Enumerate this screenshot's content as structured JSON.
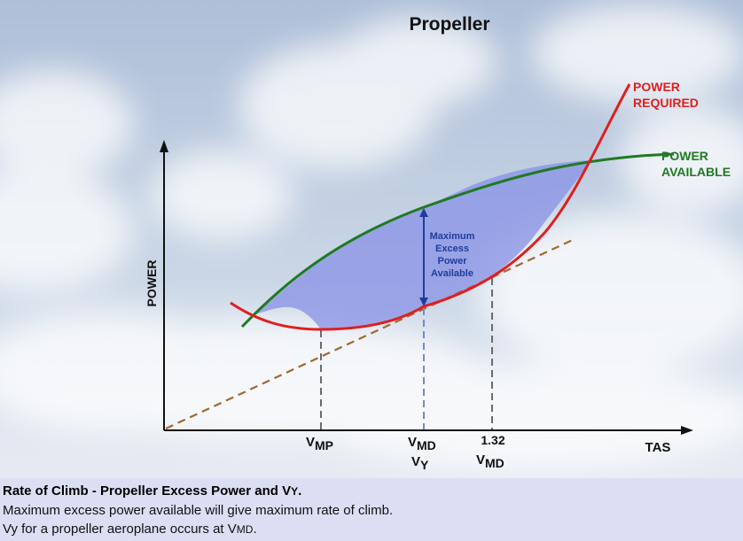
{
  "title": "Propeller",
  "axes": {
    "y_label": "POWER",
    "x_label": "TAS"
  },
  "curves": {
    "power_required": {
      "line1": "POWER",
      "line2": "REQUIRED",
      "color": "#e01e1e"
    },
    "power_available": {
      "line1": "POWER",
      "line2": "AVAILABLE",
      "color": "#1f7a22"
    }
  },
  "excess_power_label": [
    "Maximum",
    "Excess",
    "Power",
    "Available"
  ],
  "speed_markers": {
    "vmp": {
      "main": "V",
      "sub": "MP"
    },
    "vmd": {
      "main": "V",
      "sub": "MD"
    },
    "vy": {
      "main": "V",
      "sub": "Y"
    },
    "vmd_132": {
      "prefix": "1.32",
      "main": "V",
      "sub": "MD"
    }
  },
  "colors": {
    "excess_fill": "#8b93e6",
    "arrow": "#1f3c9c",
    "tangent": "#a0692e",
    "caption_bg": "#dcdff4"
  },
  "caption": {
    "title_text": "Rate of Climb - Propeller Excess Power and V",
    "title_sc": "Y",
    "title_end": ".",
    "line1": "Maximum excess power available will give maximum rate of climb.",
    "line2_text": "Vy for a propeller aeroplane occurs at V",
    "line2_sc": "MD",
    "line2_end": "."
  }
}
